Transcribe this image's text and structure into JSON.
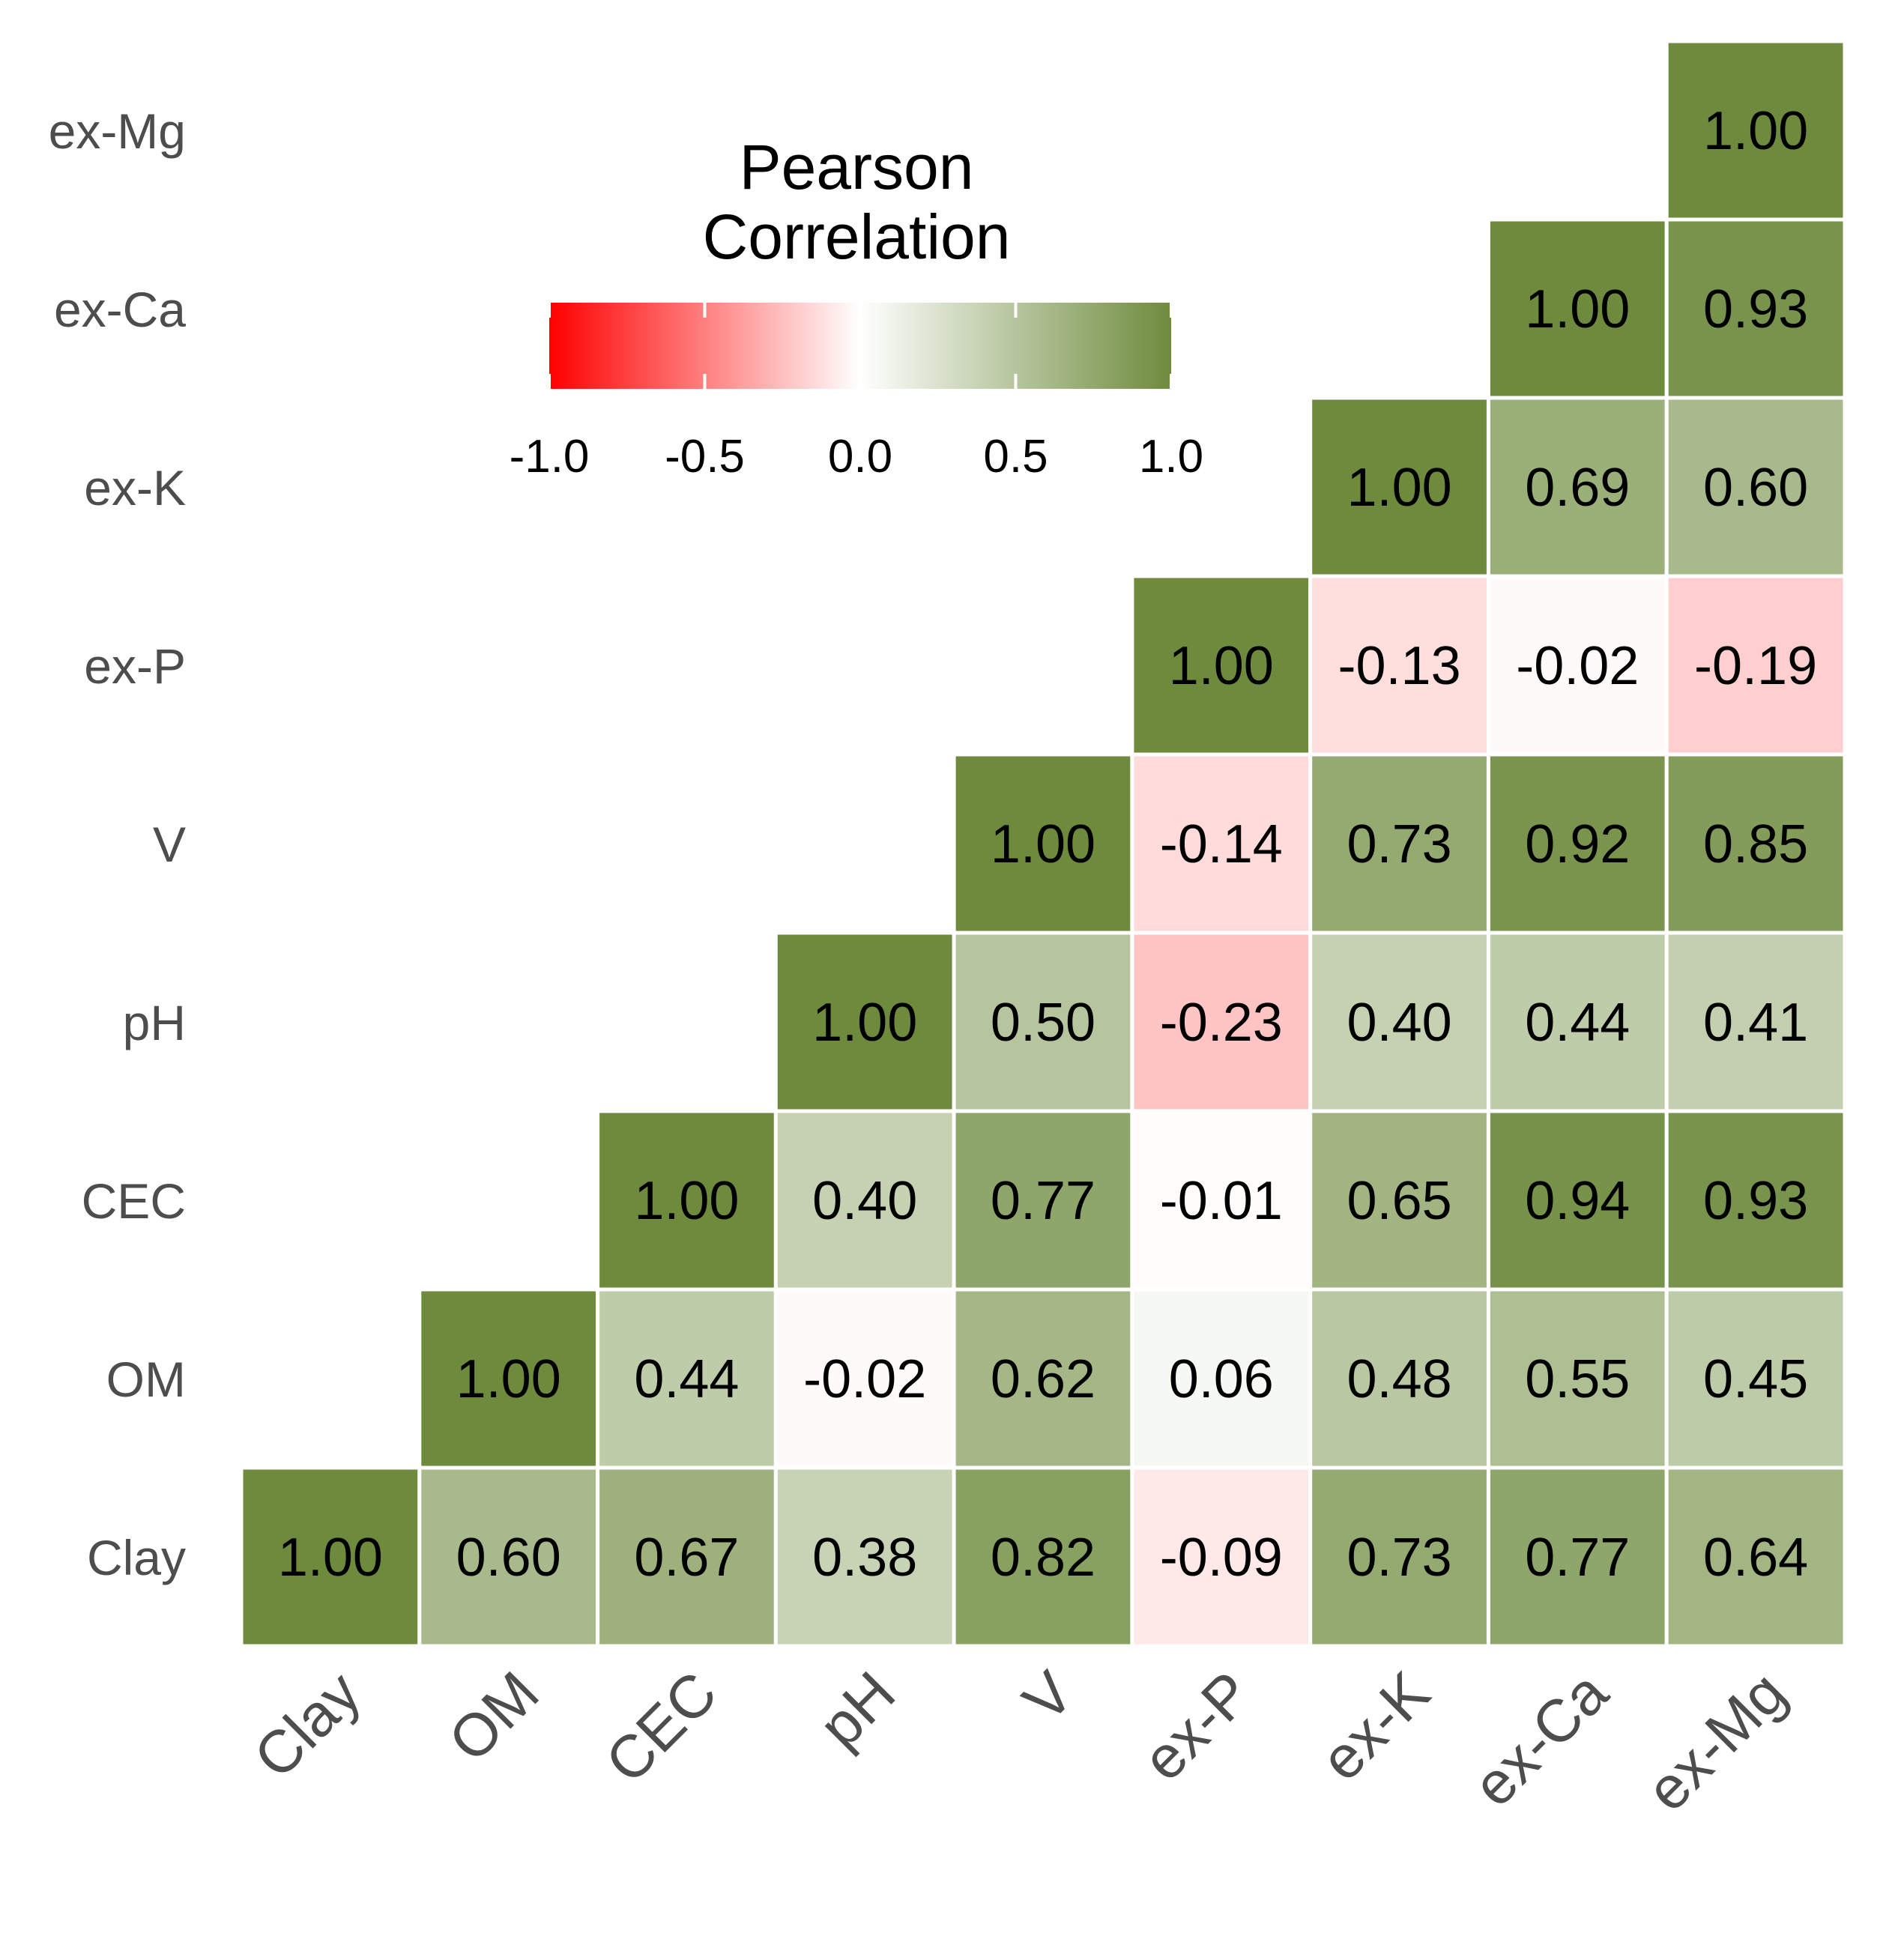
{
  "chart_data": {
    "type": "heatmap",
    "title": "",
    "xlabel": "",
    "ylabel": "",
    "variables": [
      "Clay",
      "OM",
      "CEC",
      "pH",
      "V",
      "ex-P",
      "ex-K",
      "ex-Ca",
      "ex-Mg"
    ],
    "cells": [
      {
        "x": "Clay",
        "y": "Clay",
        "value": 1.0,
        "label": "1.00"
      },
      {
        "x": "OM",
        "y": "Clay",
        "value": 0.6,
        "label": "0.60"
      },
      {
        "x": "CEC",
        "y": "Clay",
        "value": 0.67,
        "label": "0.67"
      },
      {
        "x": "pH",
        "y": "Clay",
        "value": 0.38,
        "label": "0.38"
      },
      {
        "x": "V",
        "y": "Clay",
        "value": 0.82,
        "label": "0.82"
      },
      {
        "x": "ex-P",
        "y": "Clay",
        "value": -0.09,
        "label": "-0.09"
      },
      {
        "x": "ex-K",
        "y": "Clay",
        "value": 0.73,
        "label": "0.73"
      },
      {
        "x": "ex-Ca",
        "y": "Clay",
        "value": 0.77,
        "label": "0.77"
      },
      {
        "x": "ex-Mg",
        "y": "Clay",
        "value": 0.64,
        "label": "0.64"
      },
      {
        "x": "OM",
        "y": "OM",
        "value": 1.0,
        "label": "1.00"
      },
      {
        "x": "CEC",
        "y": "OM",
        "value": 0.44,
        "label": "0.44"
      },
      {
        "x": "pH",
        "y": "OM",
        "value": -0.02,
        "label": "-0.02"
      },
      {
        "x": "V",
        "y": "OM",
        "value": 0.62,
        "label": "0.62"
      },
      {
        "x": "ex-P",
        "y": "OM",
        "value": 0.06,
        "label": "0.06"
      },
      {
        "x": "ex-K",
        "y": "OM",
        "value": 0.48,
        "label": "0.48"
      },
      {
        "x": "ex-Ca",
        "y": "OM",
        "value": 0.55,
        "label": "0.55"
      },
      {
        "x": "ex-Mg",
        "y": "OM",
        "value": 0.45,
        "label": "0.45"
      },
      {
        "x": "CEC",
        "y": "CEC",
        "value": 1.0,
        "label": "1.00"
      },
      {
        "x": "pH",
        "y": "CEC",
        "value": 0.4,
        "label": "0.40"
      },
      {
        "x": "V",
        "y": "CEC",
        "value": 0.77,
        "label": "0.77"
      },
      {
        "x": "ex-P",
        "y": "CEC",
        "value": -0.01,
        "label": "-0.01"
      },
      {
        "x": "ex-K",
        "y": "CEC",
        "value": 0.65,
        "label": "0.65"
      },
      {
        "x": "ex-Ca",
        "y": "CEC",
        "value": 0.94,
        "label": "0.94"
      },
      {
        "x": "ex-Mg",
        "y": "CEC",
        "value": 0.93,
        "label": "0.93"
      },
      {
        "x": "pH",
        "y": "pH",
        "value": 1.0,
        "label": "1.00"
      },
      {
        "x": "V",
        "y": "pH",
        "value": 0.5,
        "label": "0.50"
      },
      {
        "x": "ex-P",
        "y": "pH",
        "value": -0.23,
        "label": "-0.23"
      },
      {
        "x": "ex-K",
        "y": "pH",
        "value": 0.4,
        "label": "0.40"
      },
      {
        "x": "ex-Ca",
        "y": "pH",
        "value": 0.44,
        "label": "0.44"
      },
      {
        "x": "ex-Mg",
        "y": "pH",
        "value": 0.41,
        "label": "0.41"
      },
      {
        "x": "V",
        "y": "V",
        "value": 1.0,
        "label": "1.00"
      },
      {
        "x": "ex-P",
        "y": "V",
        "value": -0.14,
        "label": "-0.14"
      },
      {
        "x": "ex-K",
        "y": "V",
        "value": 0.73,
        "label": "0.73"
      },
      {
        "x": "ex-Ca",
        "y": "V",
        "value": 0.92,
        "label": "0.92"
      },
      {
        "x": "ex-Mg",
        "y": "V",
        "value": 0.85,
        "label": "0.85"
      },
      {
        "x": "ex-P",
        "y": "ex-P",
        "value": 1.0,
        "label": "1.00"
      },
      {
        "x": "ex-K",
        "y": "ex-P",
        "value": -0.13,
        "label": "-0.13"
      },
      {
        "x": "ex-Ca",
        "y": "ex-P",
        "value": -0.02,
        "label": "-0.02"
      },
      {
        "x": "ex-Mg",
        "y": "ex-P",
        "value": -0.19,
        "label": "-0.19"
      },
      {
        "x": "ex-K",
        "y": "ex-K",
        "value": 1.0,
        "label": "1.00"
      },
      {
        "x": "ex-Ca",
        "y": "ex-K",
        "value": 0.69,
        "label": "0.69"
      },
      {
        "x": "ex-Mg",
        "y": "ex-K",
        "value": 0.6,
        "label": "0.60"
      },
      {
        "x": "ex-Ca",
        "y": "ex-Ca",
        "value": 1.0,
        "label": "1.00"
      },
      {
        "x": "ex-Mg",
        "y": "ex-Ca",
        "value": 0.93,
        "label": "0.93"
      },
      {
        "x": "ex-Mg",
        "y": "ex-Mg",
        "value": 1.0,
        "label": "1.00"
      }
    ],
    "legend": {
      "title_lines": [
        "Pearson",
        "Correlation"
      ],
      "range": [
        -1,
        1
      ],
      "ticks": [
        -1.0,
        -0.5,
        0.0,
        0.5,
        1.0
      ],
      "tick_labels": [
        "-1.0",
        "-0.5",
        "0.0",
        "0.5",
        "1.0"
      ],
      "placement": "top-left"
    },
    "colors": {
      "low": "#ff0000",
      "mid": "#ffffff",
      "high": "#6e8b3d",
      "grid": "#ffffff",
      "axis_text": "#4d4d4d",
      "cell_text": "#000000"
    }
  }
}
